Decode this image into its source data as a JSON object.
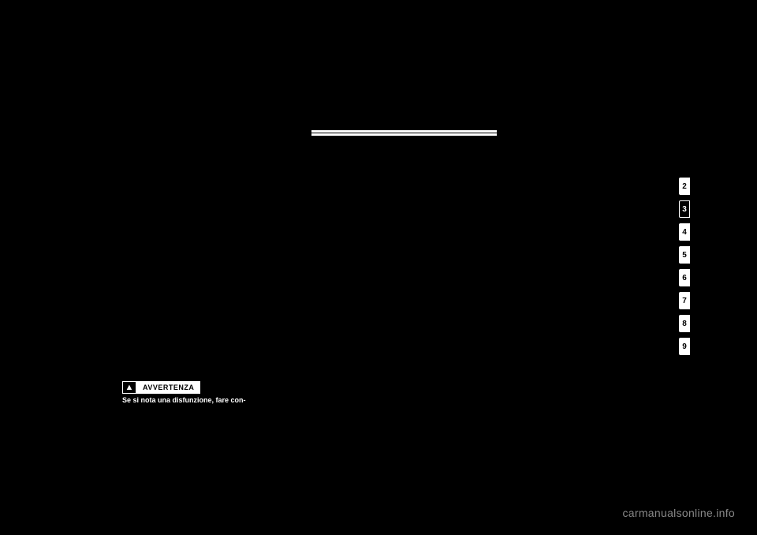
{
  "header": {
    "line_color": "#ffffff"
  },
  "tabs": [
    {
      "label": "2",
      "active": false
    },
    {
      "label": "3",
      "active": true
    },
    {
      "label": "4",
      "active": false
    },
    {
      "label": "5",
      "active": false
    },
    {
      "label": "6",
      "active": false
    },
    {
      "label": "7",
      "active": false
    },
    {
      "label": "8",
      "active": false
    },
    {
      "label": "9",
      "active": false
    }
  ],
  "warning": {
    "icon": "▲",
    "label": "AVVERTENZA",
    "text": "Se si nota una disfunzione, fare con-"
  },
  "watermark": "carmanualsonline.info",
  "styling": {
    "background_color": "#000000",
    "text_color": "#ffffff",
    "tab_bg": "#ffffff",
    "tab_active_bg": "#000000",
    "watermark_color": "#888888"
  }
}
